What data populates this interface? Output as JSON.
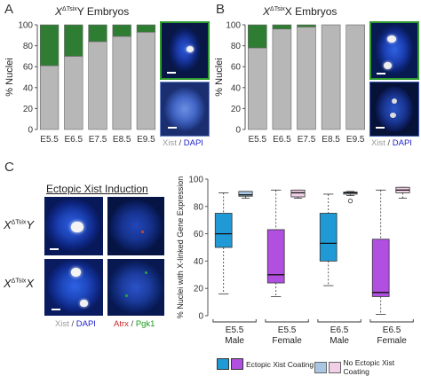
{
  "panels": {
    "A": {
      "letter": "A",
      "title_pre": "X",
      "title_sup": "ΔTsix",
      "title_post": "Y Embryos",
      "ylabel": "% Nuclei",
      "caption_xist": "Xist",
      "caption_sep": " / ",
      "caption_dapi": "DAPI"
    },
    "B": {
      "letter": "B",
      "title_pre": "X",
      "title_sup": "ΔTsix",
      "title_post": "X Embryos",
      "ylabel": "% Nuclei",
      "caption_xist": "Xist",
      "caption_sep": " / ",
      "caption_dapi": "DAPI"
    },
    "C": {
      "letter": "C",
      "induction_title": "Ectopic Xist Induction",
      "row1_pre": "X",
      "row1_sup": "ΔTsix",
      "row1_post": "Y",
      "row2_pre": "X",
      "row2_sup": "ΔTsix",
      "row2_post": "X",
      "cap_xist": "Xist",
      "cap_sep": " / ",
      "cap_dapi": "DAPI",
      "cap_atrx": "Atrx",
      "cap_pgk1": "Pgk1",
      "ylabel": "% Nuclei with X-linked Gene Expression",
      "legend_coating": "Ectopic Xist Coating",
      "legend_nocoating": "No Ectopic Xist Coating"
    }
  },
  "colors": {
    "green": "#2e7d32",
    "gray": "#b7b7b7",
    "blue": "#1f9ad6",
    "purple": "#b04fe0",
    "lightblue": "#a9c7e3",
    "lightpink": "#f1cfe6",
    "dapi_label": "#2222cc",
    "atrx_label": "#cc2222",
    "pgk1_label": "#1a9a1a"
  },
  "chart_data": [
    {
      "type": "bar",
      "panel": "A",
      "stacked": true,
      "categories": [
        "E5.5",
        "E6.5",
        "E7.5",
        "E8.5",
        "E9.5"
      ],
      "series": [
        {
          "values": [
            61,
            70,
            84,
            89,
            93
          ],
          "color": "gray"
        },
        {
          "values": [
            39,
            30,
            16,
            11,
            7
          ],
          "color": "green"
        }
      ],
      "ylabel": "% Nuclei",
      "ylim": [
        0,
        100
      ],
      "yticks": [
        0,
        20,
        40,
        60,
        80,
        100
      ]
    },
    {
      "type": "bar",
      "panel": "B",
      "stacked": true,
      "categories": [
        "E5.5",
        "E6.5",
        "E7.5",
        "E8.5",
        "E9.5"
      ],
      "series": [
        {
          "values": [
            78,
            96,
            98,
            100,
            100
          ],
          "color": "gray"
        },
        {
          "values": [
            22,
            4,
            2,
            0,
            0
          ],
          "color": "green"
        }
      ],
      "ylabel": "% Nuclei",
      "ylim": [
        0,
        100
      ],
      "yticks": [
        0,
        20,
        40,
        60,
        80,
        100
      ]
    },
    {
      "type": "box",
      "panel": "C",
      "ylabel": "% Nuclei with X-linked Gene Expression",
      "ylim": [
        0,
        100
      ],
      "yticks": [
        0,
        20,
        40,
        60,
        80,
        100
      ],
      "groups": [
        {
          "stage": "E5.5",
          "sex": "Male",
          "boxes": [
            {
              "coating": true,
              "color": "blue",
              "min": 16,
              "q1": 50,
              "median": 60,
              "q3": 75,
              "max": 90,
              "outliers": []
            },
            {
              "coating": false,
              "color": "lightblue",
              "min": 86,
              "q1": 87.5,
              "median": 88.5,
              "q3": 91,
              "max": 91,
              "outliers": []
            }
          ]
        },
        {
          "stage": "E5.5",
          "sex": "Female",
          "boxes": [
            {
              "coating": true,
              "color": "purple",
              "min": 14,
              "q1": 24,
              "median": 30,
              "q3": 63,
              "max": 92,
              "outliers": []
            },
            {
              "coating": false,
              "color": "lightpink",
              "min": 86,
              "q1": 87,
              "median": 90,
              "q3": 92,
              "max": 92,
              "outliers": []
            }
          ]
        },
        {
          "stage": "E6.5",
          "sex": "Male",
          "boxes": [
            {
              "coating": true,
              "color": "blue",
              "min": 22,
              "q1": 40,
              "median": 53,
              "q3": 75,
              "max": 89,
              "outliers": []
            },
            {
              "coating": false,
              "color": "lightblue",
              "min": 88,
              "q1": 89,
              "median": 90,
              "q3": 90.5,
              "max": 91,
              "outliers": [
                84
              ]
            }
          ]
        },
        {
          "stage": "E6.5",
          "sex": "Female",
          "boxes": [
            {
              "coating": true,
              "color": "purple",
              "min": 1,
              "q1": 14,
              "median": 17,
              "q3": 56,
              "max": 92,
              "outliers": []
            },
            {
              "coating": false,
              "color": "lightpink",
              "min": 86,
              "q1": 90,
              "median": 92,
              "q3": 94,
              "max": 94,
              "outliers": []
            }
          ]
        }
      ]
    }
  ]
}
